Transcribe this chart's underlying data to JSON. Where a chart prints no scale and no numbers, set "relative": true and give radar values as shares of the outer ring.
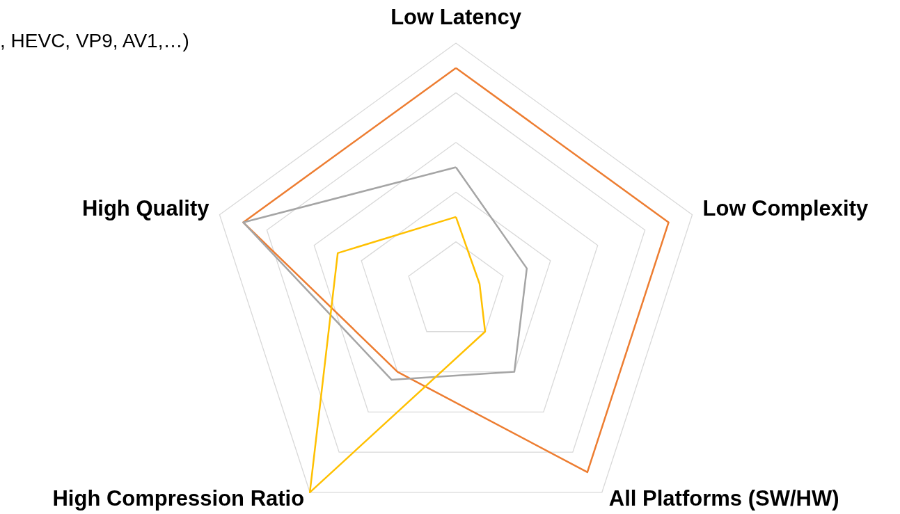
{
  "chart_data": {
    "type": "radar",
    "relative": true,
    "grid": true,
    "categories": [
      "Low Latency",
      "Low Complexity",
      "All Platforms (SW/HW)",
      "High Compression Ratio",
      "High Quality"
    ],
    "series": [
      {
        "color": "#ed7d31",
        "values": [
          0.9,
          0.9,
          0.9,
          0.4,
          0.9
        ]
      },
      {
        "color": "#a5a5a5",
        "values": [
          0.5,
          0.3,
          0.4,
          0.44,
          0.9
        ]
      },
      {
        "color": "#ffc000",
        "values": [
          0.3,
          0.1,
          0.2,
          1.0,
          0.5
        ]
      }
    ],
    "annotations": [
      ", HEVC, VP9, AV1,…)"
    ]
  }
}
